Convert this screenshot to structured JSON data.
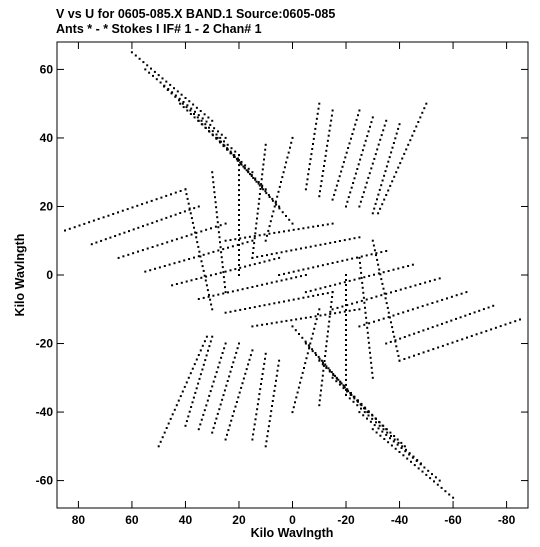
{
  "chart_data": {
    "type": "scatter",
    "title": "V vs U for 0605-085.X BAND.1   Source:0605-085",
    "subtitle": "Ants * - *    Stokes I  IF# 1 - 2  Chan# 1",
    "xlabel": "Kilo Wavlngth",
    "ylabel": "Kilo Wavlngth",
    "xlim": [
      88,
      -88
    ],
    "ylim": [
      -68,
      68
    ],
    "x_reversed": true,
    "grid": false,
    "legend": "none",
    "marker_color": "#000000",
    "x_ticks": [
      {
        "value": 80,
        "label": "80"
      },
      {
        "value": 60,
        "label": "60"
      },
      {
        "value": 40,
        "label": "40"
      },
      {
        "value": 20,
        "label": "20"
      },
      {
        "value": 0,
        "label": "0"
      },
      {
        "value": -20,
        "label": "-20"
      },
      {
        "value": -40,
        "label": "-40"
      },
      {
        "value": -60,
        "label": "-60"
      },
      {
        "value": -80,
        "label": "-80"
      }
    ],
    "y_ticks": [
      {
        "value": 60,
        "label": "60"
      },
      {
        "value": 40,
        "label": "40"
      },
      {
        "value": 20,
        "label": "20"
      },
      {
        "value": 0,
        "label": "0"
      },
      {
        "value": -20,
        "label": "-20"
      },
      {
        "value": -40,
        "label": "-40"
      },
      {
        "value": -60,
        "label": "-60"
      }
    ],
    "series": [
      {
        "description_of_tracks": "uv tracks; each track listed as start and end point (u, v) in kilo-wavelengths; mirrored conjugate tracks (-u, -v) are also plotted",
        "tracks": [
          {
            "start": [
              60,
              65
            ],
            "end": [
              30,
              45
            ]
          },
          {
            "start": [
              55,
              60
            ],
            "end": [
              25,
              40
            ]
          },
          {
            "start": [
              48,
              55
            ],
            "end": [
              20,
              35
            ]
          },
          {
            "start": [
              42,
              50
            ],
            "end": [
              15,
              30
            ]
          },
          {
            "start": [
              35,
              45
            ],
            "end": [
              10,
              25
            ]
          },
          {
            "start": [
              28,
              40
            ],
            "end": [
              5,
              20
            ]
          },
          {
            "start": [
              22,
              35
            ],
            "end": [
              0,
              15
            ]
          },
          {
            "start": [
              85,
              13
            ],
            "end": [
              40,
              25
            ]
          },
          {
            "start": [
              75,
              9
            ],
            "end": [
              35,
              20
            ]
          },
          {
            "start": [
              65,
              5
            ],
            "end": [
              25,
              15
            ]
          },
          {
            "start": [
              55,
              1
            ],
            "end": [
              15,
              10
            ]
          },
          {
            "start": [
              45,
              -3
            ],
            "end": [
              5,
              5
            ]
          },
          {
            "start": [
              35,
              -7
            ],
            "end": [
              -5,
              0
            ]
          },
          {
            "start": [
              25,
              -11
            ],
            "end": [
              -15,
              -5
            ]
          },
          {
            "start": [
              15,
              -15
            ],
            "end": [
              -25,
              -10
            ]
          },
          {
            "start": [
              -10,
              50
            ],
            "end": [
              -5,
              25
            ]
          },
          {
            "start": [
              -15,
              48
            ],
            "end": [
              -10,
              23
            ]
          },
          {
            "start": [
              -25,
              48
            ],
            "end": [
              -15,
              22
            ]
          },
          {
            "start": [
              -30,
              46
            ],
            "end": [
              -20,
              20
            ]
          },
          {
            "start": [
              -35,
              45
            ],
            "end": [
              -25,
              20
            ]
          },
          {
            "start": [
              -40,
              44
            ],
            "end": [
              -30,
              18
            ]
          },
          {
            "start": [
              -50,
              50
            ],
            "end": [
              -32,
              18
            ]
          },
          {
            "start": [
              0,
              40
            ],
            "end": [
              10,
              10
            ]
          },
          {
            "start": [
              10,
              38
            ],
            "end": [
              15,
              5
            ]
          },
          {
            "start": [
              20,
              35
            ],
            "end": [
              20,
              0
            ]
          },
          {
            "start": [
              30,
              30
            ],
            "end": [
              25,
              -5
            ]
          },
          {
            "start": [
              40,
              25
            ],
            "end": [
              30,
              -10
            ]
          }
        ]
      }
    ]
  }
}
